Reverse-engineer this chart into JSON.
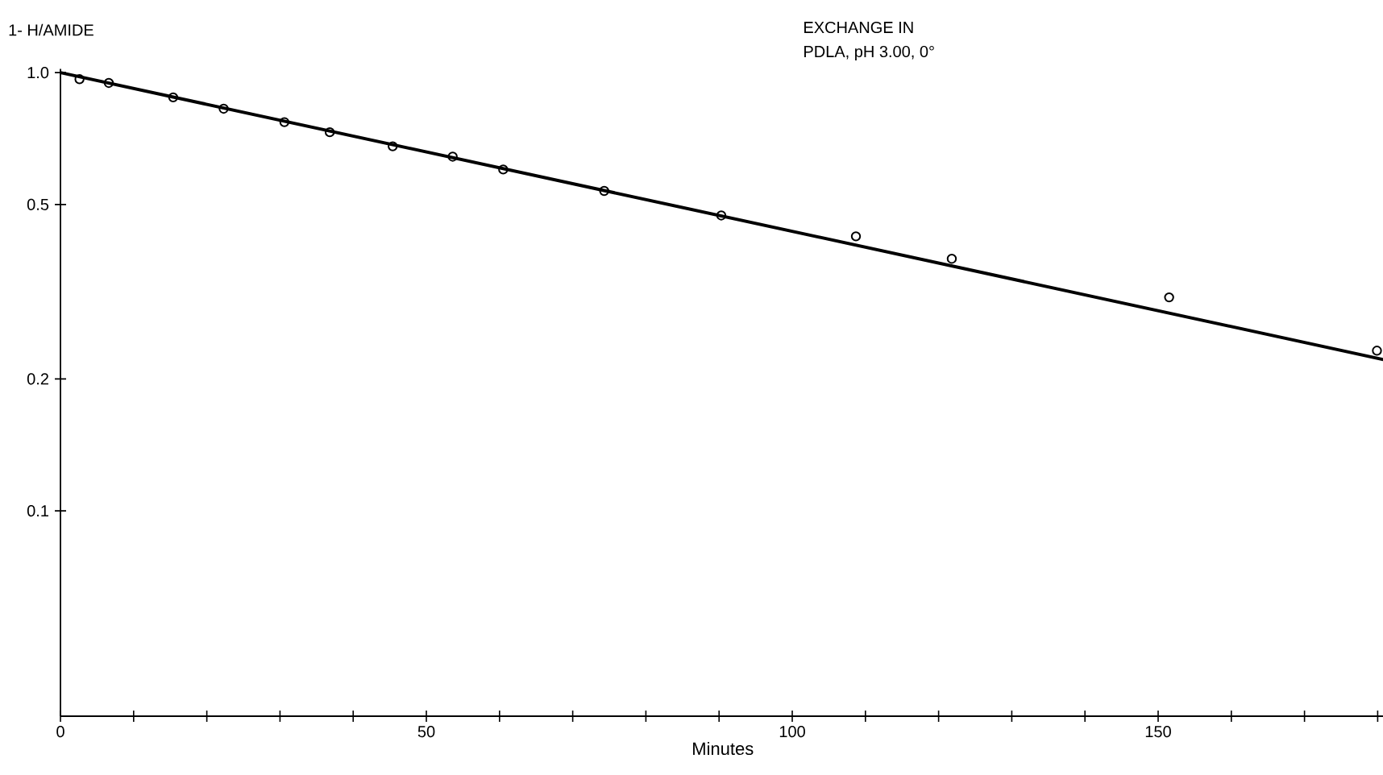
{
  "chart_data": {
    "type": "scatter",
    "xlabel": "Minutes",
    "ylabel": "1- H/AMIDE",
    "annotations": [
      "EXCHANGE IN",
      "PDLA, pH 3.00, 0°"
    ],
    "log": "y",
    "xlim": [
      0,
      181
    ],
    "ylim": [
      0.034,
      1.02
    ],
    "xticks": [
      0,
      {
        "value": 10,
        "label": null
      },
      {
        "value": 20,
        "label": null
      },
      {
        "value": 30,
        "label": null
      },
      {
        "value": 40,
        "label": null
      },
      50,
      {
        "value": 60,
        "label": null
      },
      {
        "value": 70,
        "label": null
      },
      {
        "value": 80,
        "label": null
      },
      {
        "value": 90,
        "label": null
      },
      100,
      {
        "value": 110,
        "label": null
      },
      {
        "value": 120,
        "label": null
      },
      {
        "value": 130,
        "label": null
      },
      {
        "value": 140,
        "label": null
      },
      150,
      {
        "value": 160,
        "label": null
      },
      {
        "value": 170,
        "label": null
      },
      {
        "value": 180,
        "label": null
      }
    ],
    "yticks": [
      0.1,
      0.2,
      0.5,
      {
        "value": 1,
        "label": "1.0"
      }
    ],
    "series": [
      {
        "color": "#000000",
        "marker": "circle",
        "x": [
          2.6,
          6.6,
          15.4,
          22.3,
          30.6,
          36.8,
          45.4,
          53.6,
          60.5,
          74.3,
          90.3,
          108.7,
          121.8,
          151.5,
          179.9
        ],
        "values": [
          0.966,
          0.947,
          0.878,
          0.827,
          0.771,
          0.731,
          0.679,
          0.643,
          0.601,
          0.537,
          0.472,
          0.423,
          0.376,
          0.307,
          0.232
        ]
      },
      {
        "type": "line",
        "color": "#000000",
        "marker": "none",
        "x": [
          0,
          181
        ],
        "values": [
          1.0,
          0.221
        ]
      }
    ]
  }
}
